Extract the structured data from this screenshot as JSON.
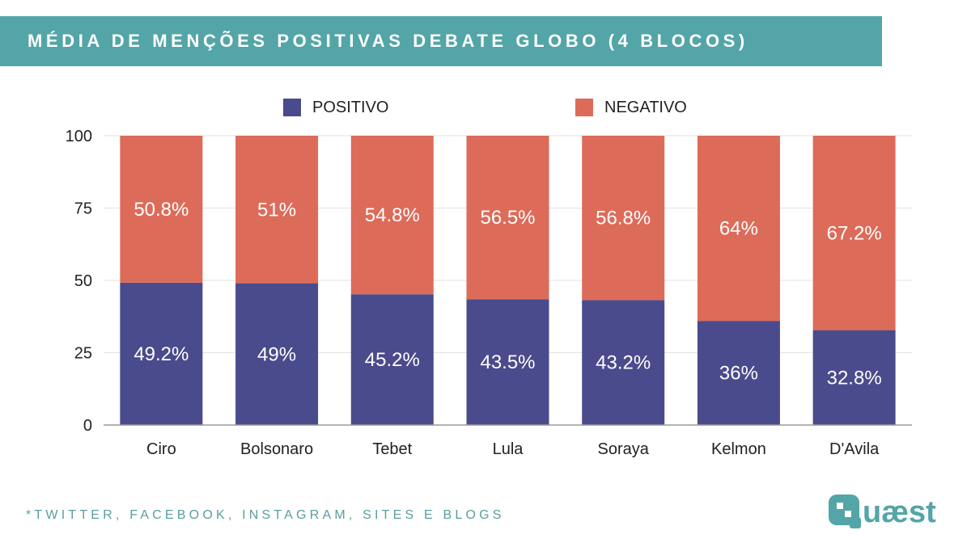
{
  "header": {
    "title": "MÉDIA DE MENÇÕES POSITIVAS DEBATE GLOBO (4 BLOCOS)"
  },
  "colors": {
    "banner": "#54a5a7",
    "positive": "#4a4b8c",
    "negative": "#dd6b59"
  },
  "chart_data": {
    "type": "bar",
    "stacked": true,
    "title": "MÉDIA DE MENÇÕES POSITIVAS DEBATE GLOBO (4 BLOCOS)",
    "xlabel": "",
    "ylabel": "",
    "ylim": [
      0,
      100
    ],
    "yticks": [
      "0",
      "25",
      "50",
      "75",
      "100"
    ],
    "categories": [
      "Ciro",
      "Bolsonaro",
      "Tebet",
      "Lula",
      "Soraya",
      "Kelmon",
      "D'Avila"
    ],
    "legend_position": "top-center",
    "series": [
      {
        "name": "POSITIVO",
        "color": "#4a4b8c",
        "values": [
          49.2,
          49,
          45.2,
          43.5,
          43.2,
          36,
          32.8
        ],
        "labels": [
          "49.2%",
          "49%",
          "45.2%",
          "43.5%",
          "43.2%",
          "36%",
          "32.8%"
        ]
      },
      {
        "name": "NEGATIVO",
        "color": "#dd6b59",
        "values": [
          50.8,
          51,
          54.8,
          56.5,
          56.8,
          64,
          67.2
        ],
        "labels": [
          "50.8%",
          "51%",
          "54.8%",
          "56.5%",
          "56.8%",
          "64%",
          "67.2%"
        ]
      }
    ]
  },
  "footer": {
    "note": "*TWITTER, FACEBOOK, INSTAGRAM, SITES E BLOGS",
    "logo_text": "Quaest"
  }
}
